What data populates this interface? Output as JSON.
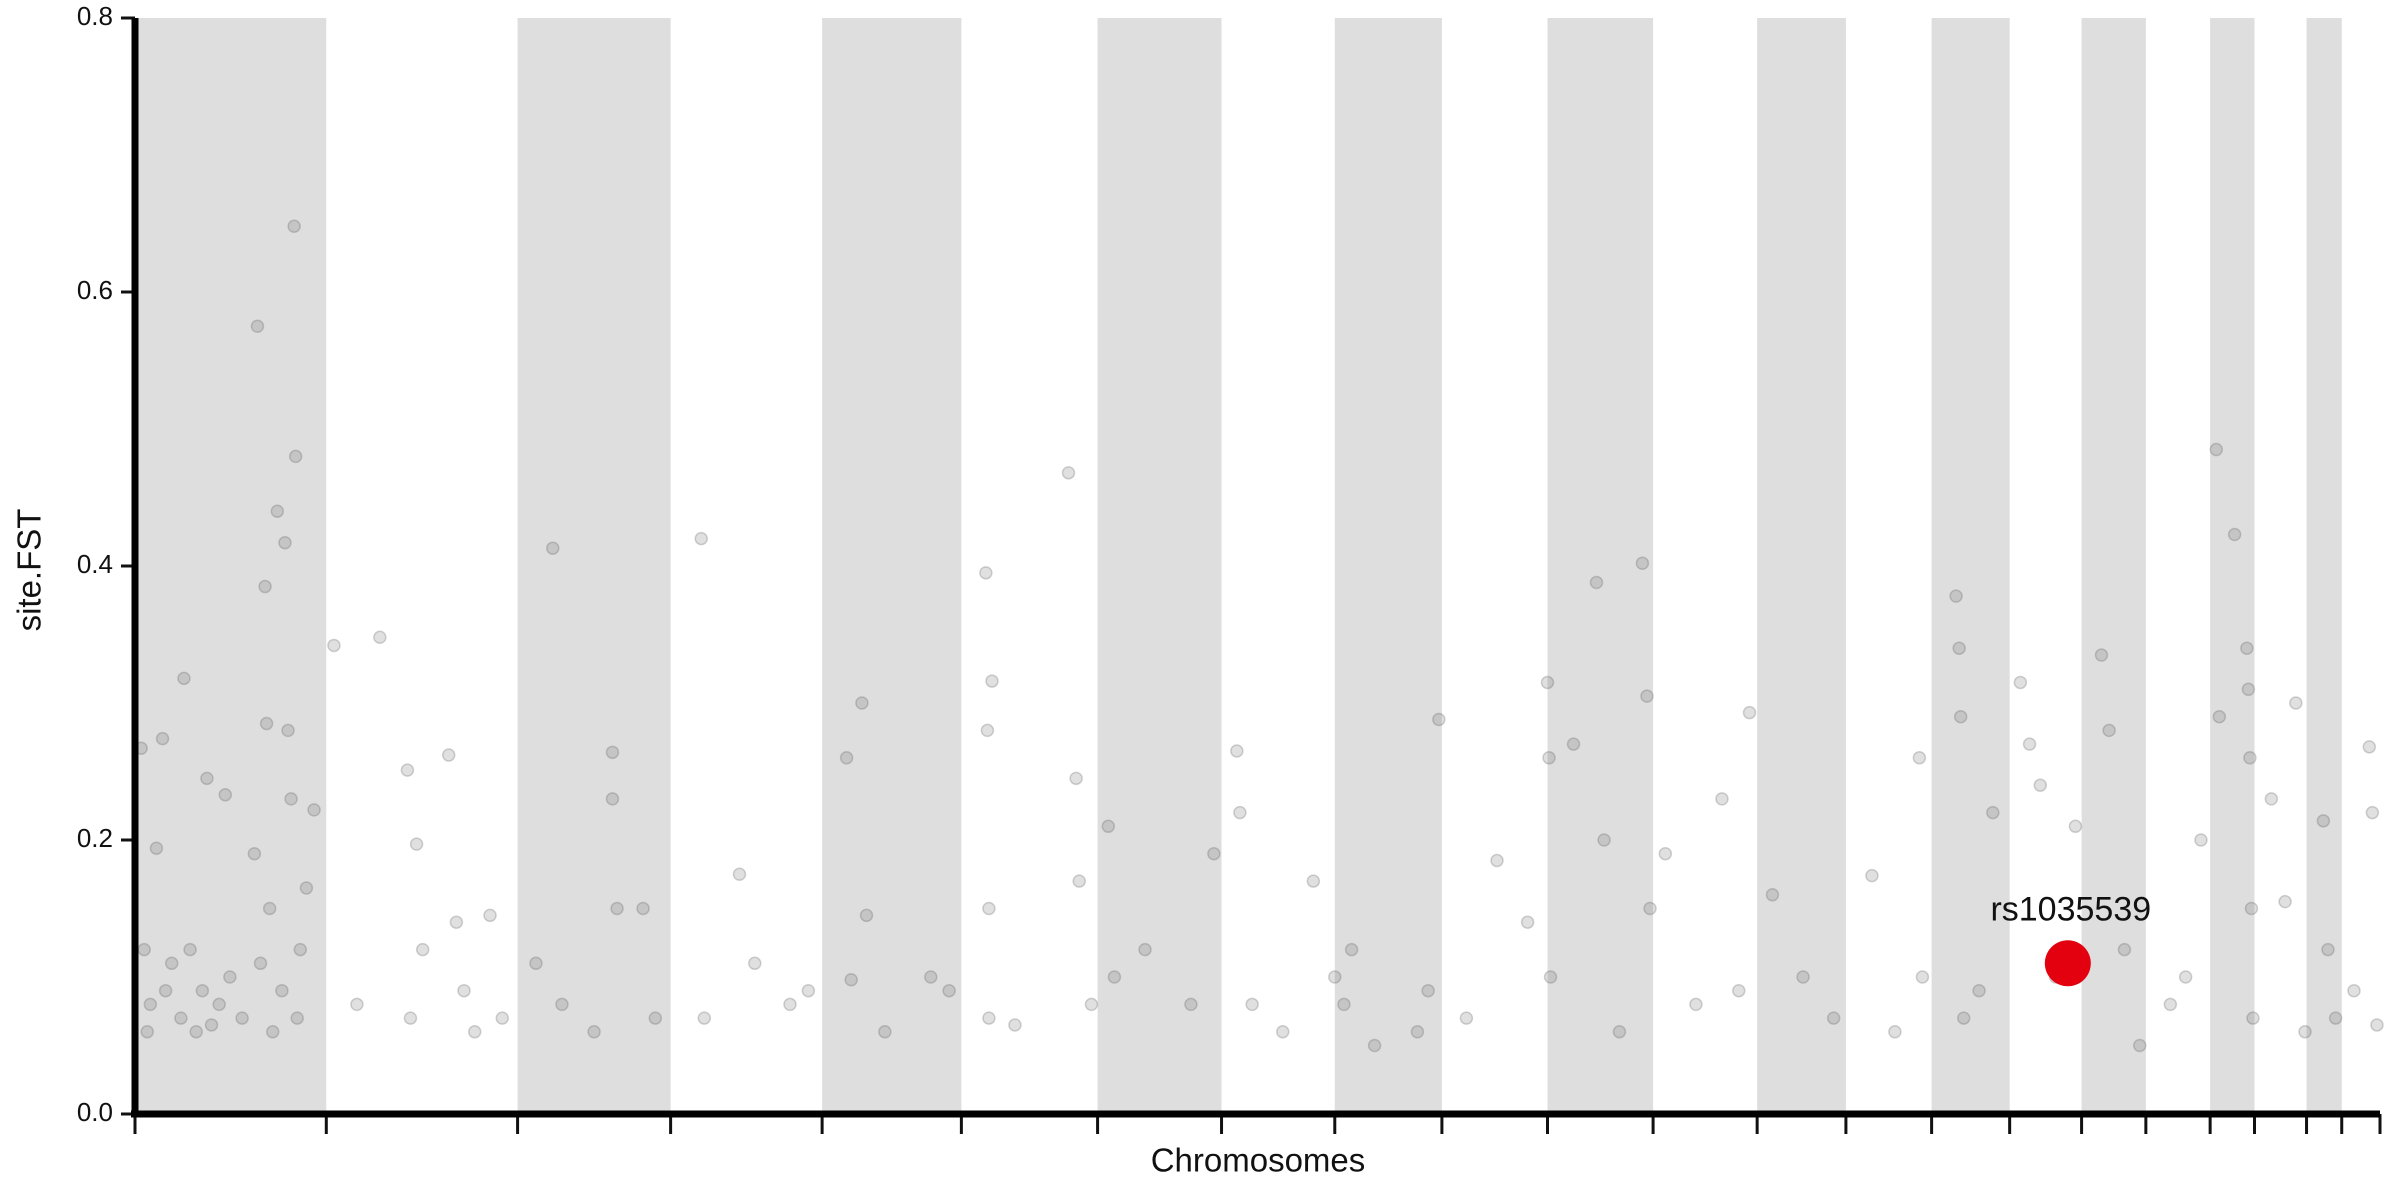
{
  "chart_data": {
    "type": "scatter",
    "xlabel": "Chromosomes",
    "ylabel": "site.FST",
    "xlim": [
      0,
      1467
    ],
    "xticks": [
      0,
      125,
      250,
      350,
      449,
      540,
      629,
      710,
      784,
      854,
      923,
      992,
      1060,
      1118,
      1174,
      1225,
      1272,
      1314,
      1356,
      1385,
      1419,
      1442,
      1467
    ],
    "ylim": [
      0,
      0.8
    ],
    "yticks": [
      {
        "value": 0,
        "label": "0.0"
      },
      0.2,
      0.4,
      0.6,
      0.8
    ],
    "band_color": "#dedede",
    "series": [
      {
        "color": "#555555",
        "x": [
          4,
          6,
          8,
          10,
          14,
          18,
          20,
          24,
          30,
          32,
          36,
          40,
          44,
          47,
          50,
          55,
          59,
          62,
          70,
          78,
          80,
          82,
          85,
          86,
          88,
          90,
          93,
          96,
          98,
          100,
          102,
          104,
          105,
          106,
          108,
          112,
          117,
          130,
          145,
          160,
          178,
          180,
          184,
          188,
          205,
          210,
          215,
          222,
          232,
          240,
          262,
          273,
          279,
          300,
          312,
          312,
          315,
          332,
          340,
          370,
          372,
          395,
          405,
          428,
          440,
          465,
          468,
          475,
          478,
          490,
          520,
          532,
          556,
          557,
          558,
          558,
          560,
          575,
          610,
          615,
          617,
          625,
          636,
          640,
          660,
          690,
          705,
          720,
          722,
          730,
          750,
          770,
          784,
          790,
          795,
          810,
          838,
          845,
          852,
          870,
          890,
          910,
          923,
          924,
          925,
          940,
          955,
          960,
          970,
          985,
          988,
          990,
          1000,
          1020,
          1037,
          1048,
          1055,
          1070,
          1090,
          1110,
          1135,
          1150,
          1166,
          1168,
          1190,
          1192,
          1193,
          1195,
          1205,
          1214,
          1232,
          1238,
          1245,
          1255,
          1268,
          1285,
          1290,
          1300,
          1310,
          1330,
          1340,
          1350,
          1360,
          1362,
          1372,
          1380,
          1381,
          1382,
          1383,
          1384,
          1396,
          1405,
          1412,
          1418,
          1430,
          1433,
          1438,
          1450,
          1460,
          1462,
          1465
        ],
        "values": [
          0.267,
          0.12,
          0.06,
          0.08,
          0.194,
          0.274,
          0.09,
          0.11,
          0.07,
          0.318,
          0.12,
          0.06,
          0.09,
          0.245,
          0.065,
          0.08,
          0.233,
          0.1,
          0.07,
          0.19,
          0.575,
          0.11,
          0.385,
          0.285,
          0.15,
          0.06,
          0.44,
          0.09,
          0.417,
          0.28,
          0.23,
          0.648,
          0.48,
          0.07,
          0.12,
          0.165,
          0.222,
          0.342,
          0.08,
          0.348,
          0.251,
          0.07,
          0.197,
          0.12,
          0.262,
          0.14,
          0.09,
          0.06,
          0.145,
          0.07,
          0.11,
          0.413,
          0.08,
          0.06,
          0.264,
          0.23,
          0.15,
          0.15,
          0.07,
          0.42,
          0.07,
          0.175,
          0.11,
          0.08,
          0.09,
          0.26,
          0.098,
          0.3,
          0.145,
          0.06,
          0.1,
          0.09,
          0.395,
          0.28,
          0.15,
          0.07,
          0.316,
          0.065,
          0.468,
          0.245,
          0.17,
          0.08,
          0.21,
          0.1,
          0.12,
          0.08,
          0.19,
          0.265,
          0.22,
          0.08,
          0.06,
          0.17,
          0.1,
          0.08,
          0.12,
          0.05,
          0.06,
          0.09,
          0.288,
          0.07,
          0.185,
          0.14,
          0.315,
          0.26,
          0.1,
          0.27,
          0.388,
          0.2,
          0.06,
          0.402,
          0.305,
          0.15,
          0.19,
          0.08,
          0.23,
          0.09,
          0.293,
          0.16,
          0.1,
          0.07,
          0.174,
          0.06,
          0.26,
          0.1,
          0.378,
          0.34,
          0.29,
          0.07,
          0.09,
          0.22,
          0.315,
          0.27,
          0.24,
          0.1,
          0.21,
          0.335,
          0.28,
          0.12,
          0.05,
          0.08,
          0.1,
          0.2,
          0.485,
          0.29,
          0.423,
          0.34,
          0.31,
          0.26,
          0.15,
          0.07,
          0.23,
          0.155,
          0.3,
          0.06,
          0.214,
          0.12,
          0.07,
          0.09,
          0.268,
          0.22,
          0.065
        ]
      },
      {
        "name": "rs1035539",
        "color": "#e3000f",
        "x": [
          1263
        ],
        "values": [
          0.11
        ]
      }
    ]
  }
}
